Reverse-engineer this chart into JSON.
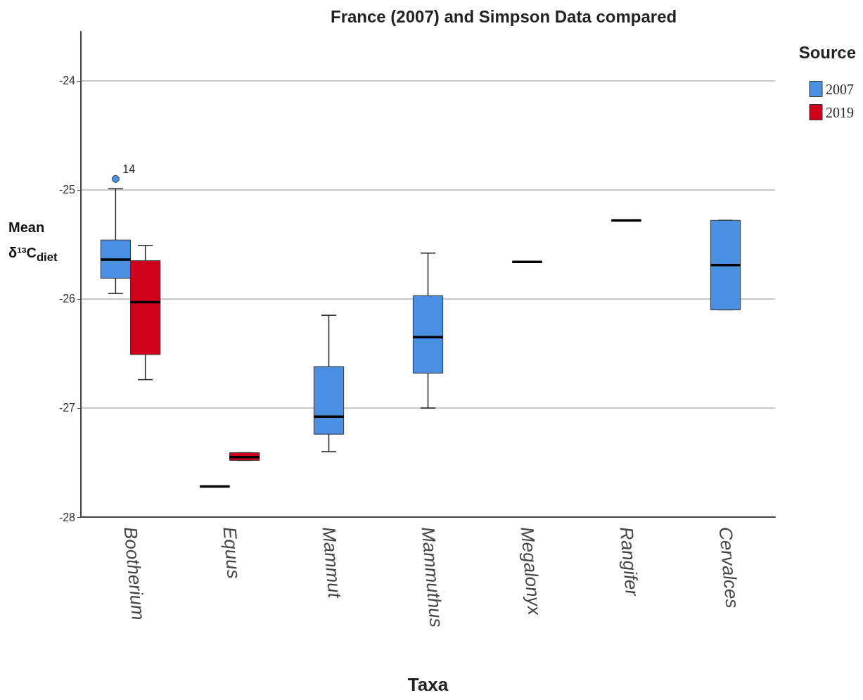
{
  "chart_data": {
    "type": "box",
    "title": "France (2007) and Simpson Data compared",
    "xlabel": "Taxa",
    "ylabel": "Mean δ¹³C$_{diet}$",
    "legend_title": "Source",
    "categories": [
      "Bootherium",
      "Equus",
      "Mammut",
      "Mammuthus",
      "Megalonyx",
      "Rangifer",
      "Cervalces"
    ],
    "series": [
      {
        "name": "2007",
        "color": "#4a90e2",
        "boxes": [
          {
            "low": -25.95,
            "q1": -25.81,
            "median": -25.64,
            "q3": -25.46,
            "high": -24.99,
            "outliers": [
              -24.9
            ]
          },
          {
            "low": -27.72,
            "q1": -27.72,
            "median": -27.72,
            "q3": -27.72,
            "high": -27.72
          },
          {
            "low": -27.4,
            "q1": -27.24,
            "median": -27.08,
            "q3": -26.62,
            "high": -26.15
          },
          {
            "low": -27.0,
            "q1": -26.68,
            "median": -26.35,
            "q3": -25.97,
            "high": -25.58
          },
          {
            "low": -25.66,
            "q1": -25.66,
            "median": -25.66,
            "q3": -25.66,
            "high": -25.66
          },
          {
            "low": -25.28,
            "q1": -25.28,
            "median": -25.28,
            "q3": -25.28,
            "high": -25.28
          },
          {
            "low": -26.1,
            "q1": -26.1,
            "median": -25.69,
            "q3": -25.28,
            "high": -25.28
          }
        ]
      },
      {
        "name": "2019",
        "color": "#d0021b",
        "boxes": [
          {
            "low": -26.74,
            "q1": -26.51,
            "median": -26.03,
            "q3": -25.65,
            "high": -25.51
          },
          {
            "low": -27.48,
            "q1": -27.48,
            "median": -27.45,
            "q3": -27.41,
            "high": -27.41
          },
          null,
          null,
          null,
          null,
          null
        ]
      }
    ],
    "annotations": [
      "14"
    ],
    "ylim": [
      -28,
      -23.55
    ],
    "yticks": [
      -28,
      -27,
      -26,
      -25,
      -24
    ],
    "grid": "y",
    "legend": "top right"
  }
}
